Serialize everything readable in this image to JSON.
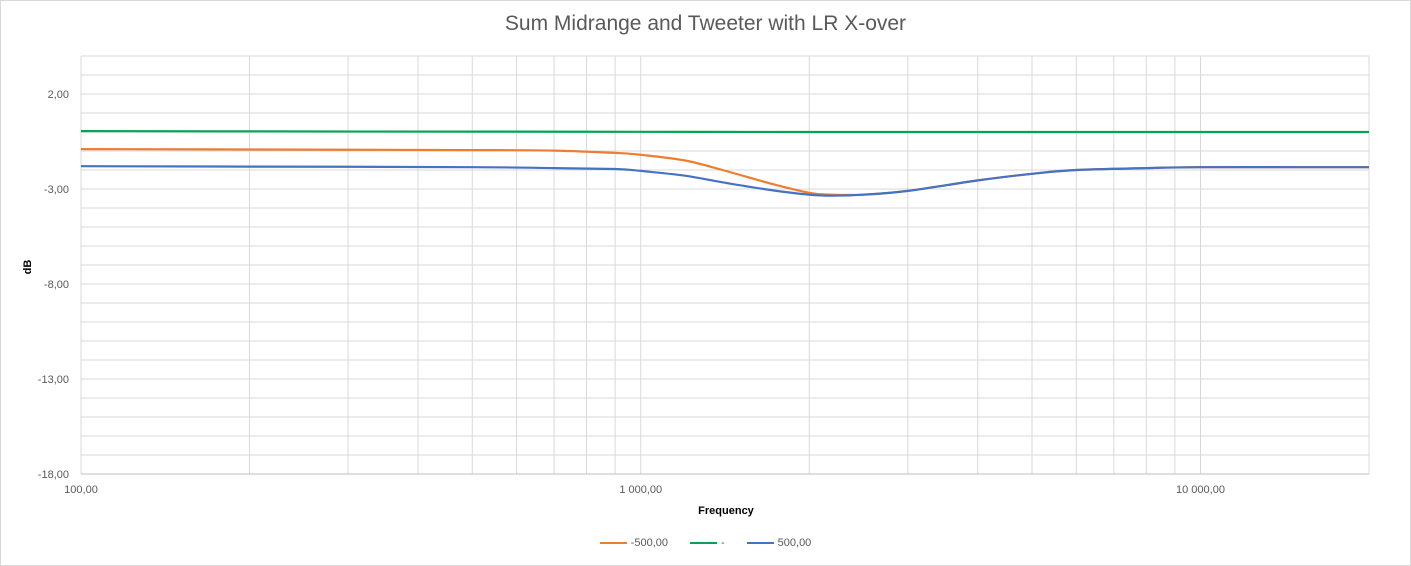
{
  "chart_data": {
    "type": "line",
    "title": "Sum Midrange and Tweeter with LR X-over",
    "xlabel": "Frequency",
    "ylabel": "dB",
    "x_scale": "log",
    "xlim": [
      100,
      20000
    ],
    "ylim": [
      -18,
      4
    ],
    "x_ticks": [
      100,
      1000,
      10000
    ],
    "x_tick_labels": [
      "100,00",
      "1 000,00",
      "10 000,00"
    ],
    "y_ticks": [
      -18,
      -13,
      -8,
      -3,
      2
    ],
    "y_tick_labels": [
      "-18,00",
      "-13,00",
      "-8,00",
      "-3,00",
      "2,00"
    ],
    "grid": true,
    "legend_position": "bottom",
    "series": [
      {
        "name": "-500,00",
        "color": "#ED7D31",
        "x": [
          100,
          200,
          500,
          700,
          900,
          1000,
          1200,
          1400,
          1700,
          2000,
          2200,
          2500,
          3000,
          4000,
          5000,
          6000,
          8000,
          10000,
          15000,
          20000
        ],
        "y": [
          -0.9,
          -0.92,
          -0.95,
          -0.98,
          -1.1,
          -1.2,
          -1.5,
          -2.0,
          -2.7,
          -3.2,
          -3.3,
          -3.3,
          -3.1,
          -2.55,
          -2.2,
          -2.0,
          -1.9,
          -1.85,
          -1.85,
          -1.85
        ]
      },
      {
        "name": "-",
        "color": "#00A550",
        "x": [
          100,
          200,
          500,
          1000,
          2000,
          5000,
          10000,
          20000
        ],
        "y": [
          0.05,
          0.03,
          0.02,
          0.01,
          0.0,
          0.0,
          0.0,
          0.0
        ]
      },
      {
        "name": "500,00",
        "color": "#4472C4",
        "x": [
          100,
          200,
          500,
          700,
          900,
          1000,
          1200,
          1400,
          1700,
          2000,
          2200,
          2500,
          3000,
          4000,
          5000,
          6000,
          8000,
          10000,
          15000,
          20000
        ],
        "y": [
          -1.8,
          -1.82,
          -1.85,
          -1.9,
          -1.95,
          -2.05,
          -2.3,
          -2.65,
          -3.05,
          -3.3,
          -3.35,
          -3.3,
          -3.1,
          -2.55,
          -2.2,
          -2.0,
          -1.9,
          -1.85,
          -1.85,
          -1.85
        ]
      }
    ]
  }
}
